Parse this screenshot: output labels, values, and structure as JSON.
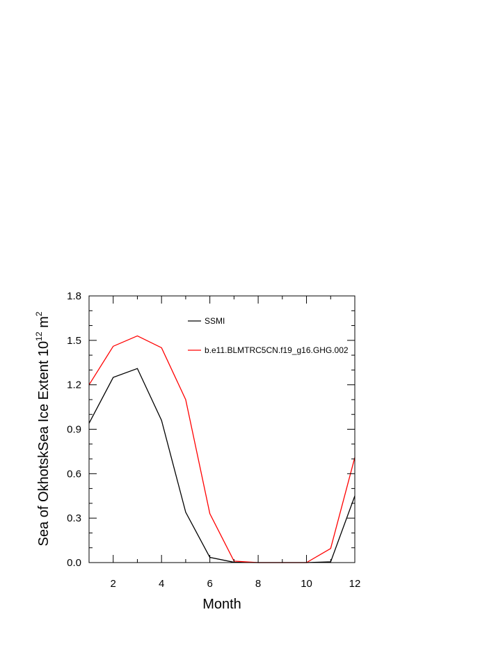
{
  "chart_data": {
    "type": "line",
    "xlabel": "Month",
    "ylabel_prefix": "Sea of OkhotskSea Ice Extent 10",
    "ylabel_exp": "12",
    "ylabel_unit": " m",
    "ylabel_unit_exp": "2",
    "xlim": [
      1,
      12
    ],
    "ylim": [
      0,
      1.8
    ],
    "xticks": [
      2,
      4,
      6,
      8,
      10,
      12
    ],
    "xtick_labels": [
      "2",
      "4",
      "6",
      "8",
      "10",
      "12"
    ],
    "yticks": [
      0,
      0.3,
      0.6,
      0.9,
      1.2,
      1.5,
      1.8
    ],
    "ytick_labels": [
      "0.0",
      "0.3",
      "0.6",
      "0.9",
      "1.2",
      "1.5",
      "1.8"
    ],
    "legend_position": "top-right",
    "series": [
      {
        "name": "SSMI",
        "color": "#000000",
        "x": [
          1,
          2,
          3,
          4,
          5,
          6,
          7,
          8,
          9,
          10,
          11,
          12
        ],
        "values": [
          0.94,
          1.25,
          1.31,
          0.96,
          0.34,
          0.035,
          0.002,
          0.0,
          0.0,
          0.0,
          0.005,
          0.45
        ]
      },
      {
        "name": "b.e11.BLMTRC5CN.f19_g16.GHG.002",
        "color": "#ff0000",
        "x": [
          1,
          2,
          3,
          4,
          5,
          6,
          7,
          8,
          9,
          10,
          11,
          12
        ],
        "values": [
          1.2,
          1.46,
          1.53,
          1.45,
          1.1,
          0.33,
          0.01,
          0.0,
          0.0,
          0.0,
          0.095,
          0.71
        ]
      }
    ]
  }
}
